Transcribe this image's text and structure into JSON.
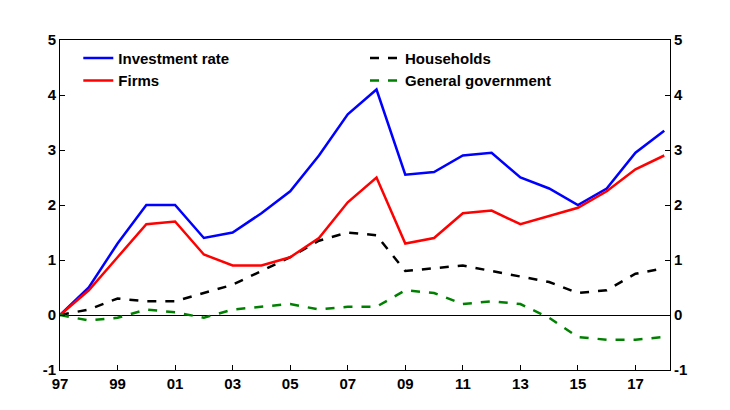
{
  "chart_data": {
    "type": "line",
    "categories": [
      "97",
      null,
      "99",
      null,
      "01",
      null,
      "03",
      null,
      "05",
      null,
      "07",
      null,
      "09",
      null,
      "11",
      null,
      "13",
      null,
      "15",
      null,
      "17",
      null
    ],
    "series": [
      {
        "name": "Investment rate",
        "color": "#0000ff",
        "line_style": "solid",
        "values": [
          0,
          0.5,
          1.3,
          2.0,
          2.0,
          1.4,
          1.5,
          1.85,
          2.25,
          2.9,
          3.65,
          4.1,
          2.55,
          2.6,
          2.9,
          2.95,
          2.5,
          2.3,
          2.0,
          2.3,
          2.95,
          3.35
        ]
      },
      {
        "name": "Households",
        "color": "#000000",
        "line_style": "dash",
        "values": [
          0,
          0.1,
          0.3,
          0.25,
          0.25,
          0.4,
          0.55,
          0.8,
          1.05,
          1.35,
          1.5,
          1.45,
          0.8,
          0.85,
          0.9,
          0.8,
          0.7,
          0.6,
          0.4,
          0.45,
          0.75,
          0.85
        ]
      },
      {
        "name": "Firms",
        "color": "#ff0000",
        "line_style": "solid",
        "values": [
          0,
          0.45,
          1.05,
          1.65,
          1.7,
          1.1,
          0.9,
          0.9,
          1.05,
          1.4,
          2.05,
          2.5,
          1.3,
          1.4,
          1.85,
          1.9,
          1.65,
          1.8,
          1.95,
          2.25,
          2.65,
          2.9
        ]
      },
      {
        "name": "General government",
        "color": "#008000",
        "line_style": "dash",
        "values": [
          0,
          -0.1,
          -0.05,
          0.1,
          0.05,
          -0.05,
          0.1,
          0.15,
          0.2,
          0.1,
          0.15,
          0.15,
          0.45,
          0.4,
          0.2,
          0.25,
          0.2,
          -0.05,
          -0.4,
          -0.45,
          -0.45,
          -0.4
        ]
      }
    ],
    "ylim": [
      -1,
      5
    ],
    "yticks": [
      -1,
      0,
      1,
      2,
      3,
      4,
      5
    ],
    "y2lim": [
      -1,
      5
    ],
    "y2ticks": [
      -1,
      0,
      1,
      2,
      3,
      4,
      5
    ],
    "grid": false,
    "legend": "top"
  }
}
